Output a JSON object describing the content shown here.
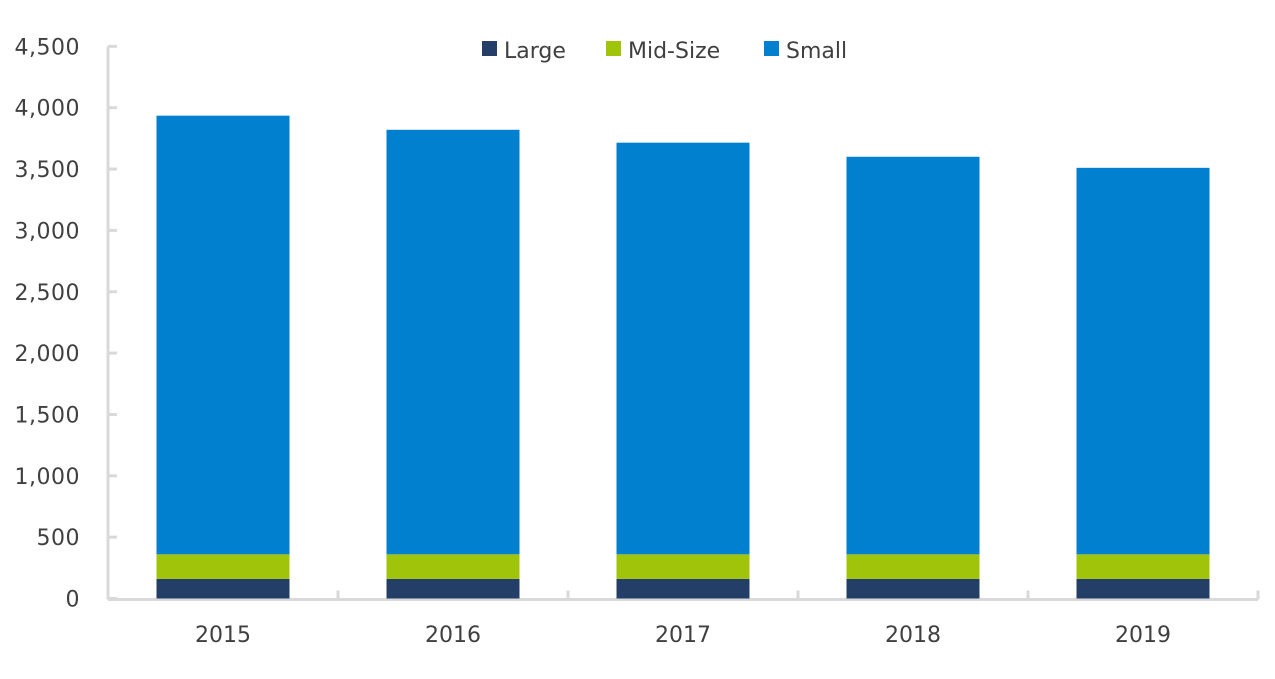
{
  "chart_data": {
    "type": "bar",
    "stacked": true,
    "title": "",
    "xlabel": "",
    "ylabel": "",
    "categories": [
      "2015",
      "2016",
      "2017",
      "2018",
      "2019"
    ],
    "series": [
      {
        "name": "Large",
        "color": "#243f67",
        "values": [
          160,
          160,
          160,
          160,
          160
        ]
      },
      {
        "name": "Mid-Size",
        "color": "#a0c40a",
        "values": [
          200,
          200,
          200,
          200,
          200
        ]
      },
      {
        "name": "Small",
        "color": "#0080cf",
        "values": [
          3575,
          3460,
          3355,
          3240,
          3150
        ]
      }
    ],
    "ylim": [
      0,
      4500
    ],
    "yticks": [
      "0",
      "500",
      "1,000",
      "1,500",
      "2,000",
      "2,500",
      "3,000",
      "3,500",
      "4,000",
      "4,500"
    ],
    "ytick_values": [
      0,
      500,
      1000,
      1500,
      2000,
      2500,
      3000,
      3500,
      4000,
      4500
    ],
    "grid": false,
    "legend_position": "top"
  }
}
